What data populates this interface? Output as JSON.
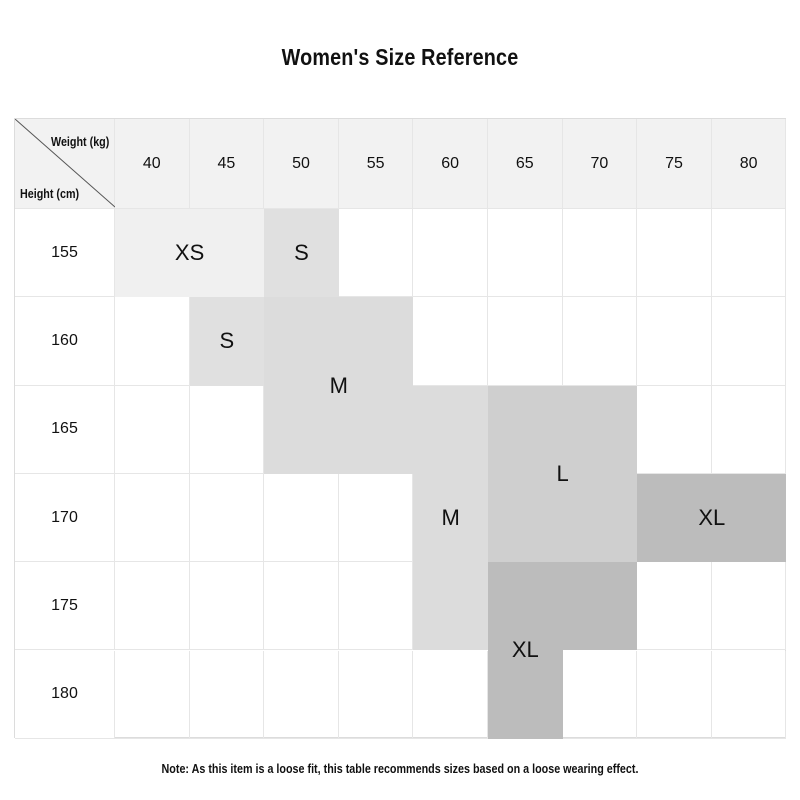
{
  "title": "Women's Size Reference",
  "corner": {
    "weight_label": "Weight (kg)",
    "height_label": "Height (cm)"
  },
  "weights": [
    "40",
    "45",
    "50",
    "55",
    "60",
    "65",
    "70",
    "75",
    "80"
  ],
  "heights": [
    "155",
    "160",
    "165",
    "170",
    "175",
    "180"
  ],
  "size_blocks": [
    {
      "label": "XS",
      "color": "#f0f0f0"
    },
    {
      "label": "S",
      "color": "#e0e0e0"
    },
    {
      "label": "S",
      "color": "#e0e0e0"
    },
    {
      "label": "M",
      "color": "#dcdcdc"
    },
    {
      "label": "M",
      "color": "#dcdcdc"
    },
    {
      "label": "L",
      "color": "#cfcfcf"
    },
    {
      "label": "XL",
      "color": "#bcbcbc"
    },
    {
      "label": "XL",
      "color": "#bcbcbc"
    }
  ],
  "note": "Note: As this item is a loose fit, this table recommends sizes based on a loose wearing effect."
}
